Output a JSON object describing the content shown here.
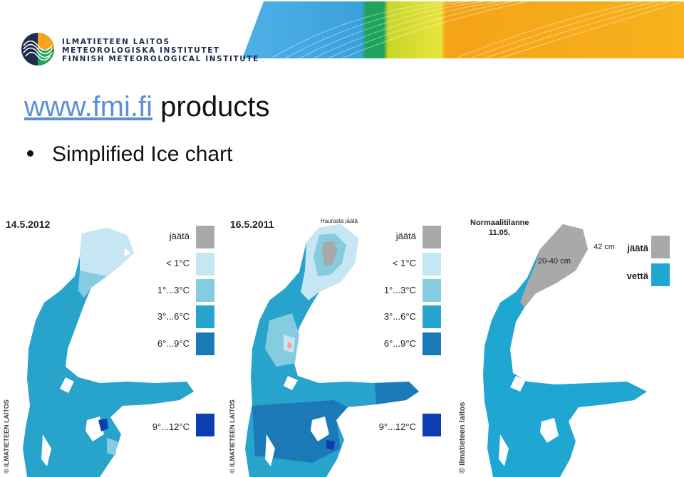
{
  "header": {
    "org_lines": [
      "ILMATIETEEN LAITOS",
      "METEOROLOGISKA INSTITUTET",
      "FINNISH METEOROLOGICAL INSTITUTE"
    ],
    "logo_icon": "fmi-globe-logo-icon",
    "band_colors": [
      "#3aa0dc",
      "#1fa35a",
      "#c8d62a",
      "#f5a31a"
    ]
  },
  "title": {
    "link_text": "www.fmi.fi",
    "rest": "products"
  },
  "bullet": {
    "text": "Simplified Ice chart"
  },
  "panels": [
    {
      "date": "14.5.2012",
      "copyright": "© ILMATIETEEN LAITOS",
      "legend": [
        {
          "label": "jäätä",
          "color": "#a9a9a9"
        },
        {
          "label": "< 1°C",
          "color": "#c5e6f2"
        },
        {
          "label": "1°...3°C",
          "color": "#86cce0"
        },
        {
          "label": "3°...6°C",
          "color": "#27a3cc"
        },
        {
          "label": "6°...9°C",
          "color": "#1b79b7"
        },
        {
          "label": "9°...12°C",
          "color": "#0d3eb0"
        }
      ]
    },
    {
      "date": "16.5.2011",
      "note": "Haurasta jäätä",
      "copyright": "© ILMATIETEEN LAITOS",
      "legend": [
        {
          "label": "jäätä",
          "color": "#a9a9a9"
        },
        {
          "label": "< 1°C",
          "color": "#c5e6f2"
        },
        {
          "label": "1°...3°C",
          "color": "#86cce0"
        },
        {
          "label": "3°...6°C",
          "color": "#27a3cc"
        },
        {
          "label": "6°...9°C",
          "color": "#1b79b7"
        },
        {
          "label": "9°...12°C",
          "color": "#0d3eb0"
        }
      ]
    },
    {
      "title_line1": "Normaalitilanne",
      "title_line2": "11.05.",
      "copyright": "© Ilmatieteen laitos",
      "annotation_thick": "42 cm",
      "annotation_thin": "20-40 cm",
      "legend": [
        {
          "label": "jäätä",
          "color": "#a9a9a9"
        },
        {
          "label": "vettä",
          "color": "#1fa6d1"
        }
      ]
    }
  ]
}
